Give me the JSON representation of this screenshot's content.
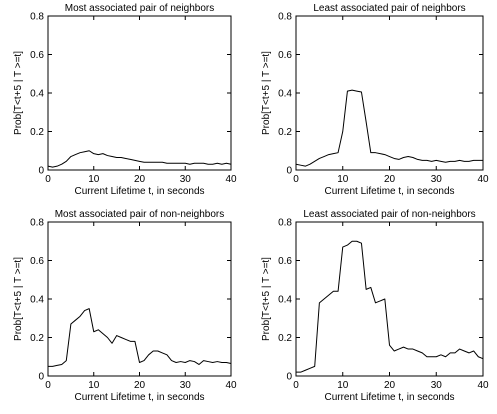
{
  "chart_data": [
    {
      "type": "line",
      "title": "Most associated pair of neighbors",
      "xlabel": "Current Lifetime t, in seconds",
      "ylabel": "Prob[T<t+5 | T >=t]",
      "xlim": [
        0,
        40
      ],
      "ylim": [
        0,
        0.8
      ],
      "x_ticks": [
        0,
        10,
        20,
        30,
        40
      ],
      "x_tick_labels": [
        "0",
        "10",
        "20",
        "30",
        "40"
      ],
      "y_ticks": [
        0,
        0.2,
        0.4,
        0.6,
        0.8
      ],
      "y_tick_labels": [
        "0",
        "0.2",
        "0.4",
        "0.6",
        "0.8"
      ],
      "grid": false,
      "color": "#000000",
      "series": [
        {
          "x": [
            0,
            1,
            2,
            3,
            4,
            5,
            6,
            7,
            8,
            9,
            10,
            11,
            12,
            13,
            14,
            15,
            16,
            17,
            18,
            19,
            20,
            21,
            22,
            23,
            24,
            25,
            26,
            27,
            28,
            29,
            30,
            31,
            32,
            33,
            34,
            35,
            36,
            37,
            38,
            39,
            40
          ],
          "y": [
            0.02,
            0.015,
            0.02,
            0.03,
            0.045,
            0.07,
            0.08,
            0.09,
            0.095,
            0.1,
            0.085,
            0.08,
            0.085,
            0.075,
            0.07,
            0.065,
            0.065,
            0.06,
            0.055,
            0.05,
            0.045,
            0.04,
            0.04,
            0.04,
            0.04,
            0.04,
            0.035,
            0.035,
            0.035,
            0.035,
            0.035,
            0.03,
            0.035,
            0.035,
            0.035,
            0.03,
            0.03,
            0.035,
            0.03,
            0.035,
            0.03
          ]
        }
      ]
    },
    {
      "type": "line",
      "title": "Least associated pair of neighbors",
      "xlabel": "Current Lifetime t, in seconds",
      "ylabel": "Prob[T<t+5 | T >=t]",
      "xlim": [
        0,
        40
      ],
      "ylim": [
        0,
        0.8
      ],
      "x_ticks": [
        0,
        10,
        20,
        30,
        40
      ],
      "x_tick_labels": [
        "0",
        "10",
        "20",
        "30",
        "40"
      ],
      "y_ticks": [
        0,
        0.2,
        0.4,
        0.6,
        0.8
      ],
      "y_tick_labels": [
        "0",
        "0.2",
        "0.4",
        "0.6",
        "0.8"
      ],
      "grid": false,
      "color": "#000000",
      "series": [
        {
          "x": [
            0,
            1,
            2,
            3,
            4,
            5,
            6,
            7,
            8,
            9,
            10,
            11,
            12,
            13,
            14,
            15,
            16,
            17,
            18,
            19,
            20,
            21,
            22,
            23,
            24,
            25,
            26,
            27,
            28,
            29,
            30,
            31,
            32,
            33,
            34,
            35,
            36,
            37,
            38,
            39,
            40
          ],
          "y": [
            0.03,
            0.025,
            0.02,
            0.03,
            0.045,
            0.06,
            0.07,
            0.08,
            0.085,
            0.09,
            0.2,
            0.41,
            0.415,
            0.41,
            0.405,
            0.25,
            0.09,
            0.09,
            0.085,
            0.08,
            0.07,
            0.06,
            0.055,
            0.065,
            0.07,
            0.065,
            0.055,
            0.05,
            0.05,
            0.045,
            0.05,
            0.045,
            0.04,
            0.045,
            0.045,
            0.05,
            0.045,
            0.045,
            0.05,
            0.05,
            0.05
          ]
        }
      ]
    },
    {
      "type": "line",
      "title": "Most associated pair of non-neighbors",
      "xlabel": "Current Lifetime t, in seconds",
      "ylabel": "Prob[T<t+5 | T >=t]",
      "xlim": [
        0,
        40
      ],
      "ylim": [
        0,
        0.8
      ],
      "x_ticks": [
        0,
        10,
        20,
        30,
        40
      ],
      "x_tick_labels": [
        "0",
        "10",
        "20",
        "30",
        "40"
      ],
      "y_ticks": [
        0,
        0.2,
        0.4,
        0.6,
        0.8
      ],
      "y_tick_labels": [
        "0",
        "0.2",
        "0.4",
        "0.6",
        "0.8"
      ],
      "grid": false,
      "color": "#000000",
      "series": [
        {
          "x": [
            0,
            1,
            2,
            3,
            4,
            5,
            6,
            7,
            8,
            9,
            10,
            11,
            12,
            13,
            14,
            15,
            16,
            17,
            18,
            19,
            20,
            21,
            22,
            23,
            24,
            25,
            26,
            27,
            28,
            29,
            30,
            31,
            32,
            33,
            34,
            35,
            36,
            37,
            38,
            39,
            40
          ],
          "y": [
            0.05,
            0.05,
            0.055,
            0.06,
            0.08,
            0.27,
            0.29,
            0.31,
            0.34,
            0.35,
            0.23,
            0.24,
            0.22,
            0.2,
            0.17,
            0.21,
            0.2,
            0.19,
            0.18,
            0.18,
            0.07,
            0.08,
            0.11,
            0.13,
            0.13,
            0.12,
            0.11,
            0.08,
            0.07,
            0.075,
            0.07,
            0.08,
            0.075,
            0.06,
            0.08,
            0.075,
            0.07,
            0.075,
            0.07,
            0.07,
            0.065
          ]
        }
      ]
    },
    {
      "type": "line",
      "title": "Least associated pair of non-neighbors",
      "xlabel": "Current Lifetime t, in seconds",
      "ylabel": "Prob[T<t+5 | T >=t]",
      "xlim": [
        0,
        40
      ],
      "ylim": [
        0,
        0.8
      ],
      "x_ticks": [
        0,
        10,
        20,
        30,
        40
      ],
      "x_tick_labels": [
        "0",
        "10",
        "20",
        "30",
        "40"
      ],
      "y_ticks": [
        0,
        0.2,
        0.4,
        0.6,
        0.8
      ],
      "y_tick_labels": [
        "0",
        "0.2",
        "0.4",
        "0.6",
        "0.8"
      ],
      "grid": false,
      "color": "#000000",
      "series": [
        {
          "x": [
            0,
            1,
            2,
            3,
            4,
            5,
            6,
            7,
            8,
            9,
            10,
            11,
            12,
            13,
            14,
            15,
            16,
            17,
            18,
            19,
            20,
            21,
            22,
            23,
            24,
            25,
            26,
            27,
            28,
            29,
            30,
            31,
            32,
            33,
            34,
            35,
            36,
            37,
            38,
            39,
            40
          ],
          "y": [
            0.02,
            0.02,
            0.03,
            0.04,
            0.05,
            0.38,
            0.4,
            0.42,
            0.44,
            0.44,
            0.67,
            0.68,
            0.7,
            0.7,
            0.69,
            0.45,
            0.46,
            0.38,
            0.39,
            0.4,
            0.16,
            0.13,
            0.14,
            0.15,
            0.14,
            0.14,
            0.13,
            0.12,
            0.1,
            0.1,
            0.1,
            0.11,
            0.1,
            0.12,
            0.12,
            0.14,
            0.13,
            0.12,
            0.13,
            0.1,
            0.09
          ]
        }
      ]
    }
  ]
}
